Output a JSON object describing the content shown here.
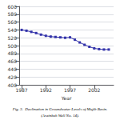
{
  "chart_data": {
    "type": "line",
    "title": "Fig. 3.  Declination in Groundwater Levels of Mujib Basin.",
    "subtitle": "(Arainbeh Well No. 14).",
    "xlabel": "Year",
    "x": [
      1987,
      1988,
      1989,
      1990,
      1991,
      1992,
      1993,
      1994,
      1995,
      1996,
      1997,
      1998,
      1999,
      2000,
      2001,
      2002,
      2003,
      2004,
      2005
    ],
    "values": [
      540,
      538,
      535,
      532,
      528,
      525,
      523,
      522,
      521,
      520,
      521,
      515,
      508,
      502,
      497,
      493,
      491,
      490,
      490
    ],
    "color": "#3333aa",
    "marker": "square",
    "xlim": [
      1986.5,
      2006
    ],
    "xticks": [
      1987,
      1992,
      1997,
      2002
    ],
    "ylim": [
      400,
      600
    ],
    "yticks": [
      400,
      420,
      440,
      460,
      480,
      500,
      520,
      540,
      560,
      580,
      600
    ],
    "grid": true
  }
}
